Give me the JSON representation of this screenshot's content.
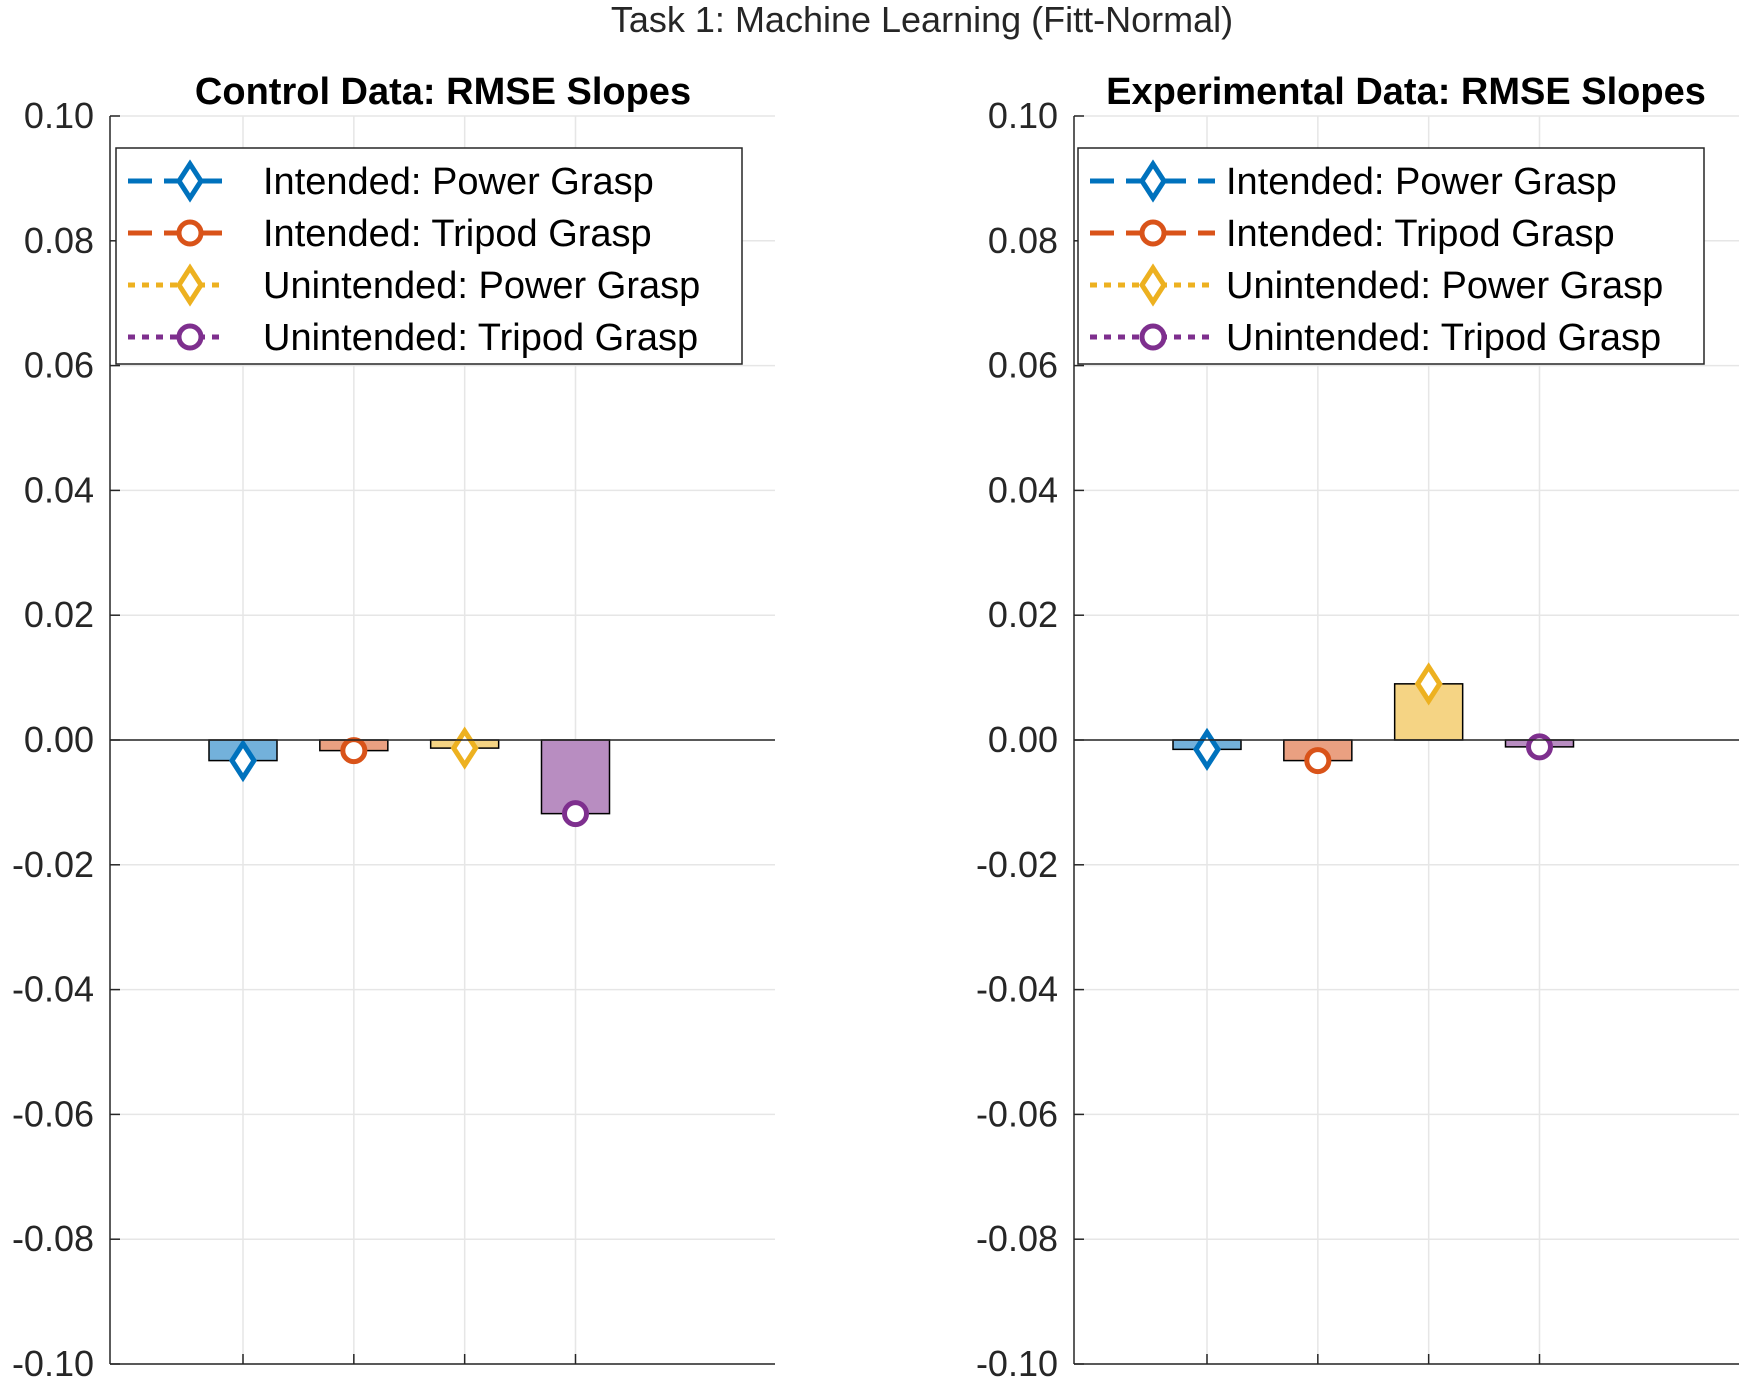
{
  "figure": {
    "suptitle": "Task 1: Machine Learning (Fitt-Normal)"
  },
  "chart_data": [
    {
      "type": "bar",
      "title": "Control Data: RMSE Slopes",
      "xlabel": "",
      "ylabel": "",
      "ylim": [
        -0.1,
        0.1
      ],
      "yticks": [
        0.1,
        0.08,
        0.06,
        0.04,
        0.02,
        0.0,
        -0.02,
        -0.04,
        -0.06,
        -0.08,
        -0.1
      ],
      "ytick_labels": [
        "0.10",
        "0.08",
        "0.06",
        "0.04",
        "0.02",
        "0.00",
        "-0.02",
        "-0.04",
        "-0.06",
        "-0.08",
        "-0.10"
      ],
      "grid": true,
      "legend_position": "top-left",
      "series": [
        {
          "name": "Intended: Power Grasp",
          "values": [
            -0.0033
          ],
          "color": "#0072BD",
          "marker": "diamond",
          "line": "dashed"
        },
        {
          "name": "Intended: Tripod Grasp",
          "values": [
            -0.0017
          ],
          "color": "#D95319",
          "marker": "circle",
          "line": "dashed"
        },
        {
          "name": "Unintended: Power Grasp",
          "values": [
            -0.0013
          ],
          "color": "#EDB120",
          "marker": "diamond",
          "line": "dotted"
        },
        {
          "name": "Unintended: Tripod Grasp",
          "values": [
            -0.0118
          ],
          "color": "#7E2F8E",
          "marker": "circle",
          "line": "dotted"
        }
      ]
    },
    {
      "type": "bar",
      "title": "Experimental Data: RMSE Slopes",
      "xlabel": "",
      "ylabel": "",
      "ylim": [
        -0.1,
        0.1
      ],
      "yticks": [
        0.1,
        0.08,
        0.06,
        0.04,
        0.02,
        0.0,
        -0.02,
        -0.04,
        -0.06,
        -0.08,
        -0.1
      ],
      "ytick_labels": [
        "0.10",
        "0.08",
        "0.06",
        "0.04",
        "0.02",
        "0.00",
        "-0.02",
        "-0.04",
        "-0.06",
        "-0.08",
        "-0.10"
      ],
      "grid": true,
      "legend_position": "top-left",
      "series": [
        {
          "name": "Intended: Power Grasp",
          "values": [
            -0.0015
          ],
          "color": "#0072BD",
          "marker": "diamond",
          "line": "dashed"
        },
        {
          "name": "Intended: Tripod Grasp",
          "values": [
            -0.0033
          ],
          "color": "#D95319",
          "marker": "circle",
          "line": "dashed"
        },
        {
          "name": "Unintended: Power Grasp",
          "values": [
            0.009
          ],
          "color": "#EDB120",
          "marker": "diamond",
          "line": "dotted"
        },
        {
          "name": "Unintended: Tripod Grasp",
          "values": [
            -0.0011
          ],
          "color": "#7E2F8E",
          "marker": "circle",
          "line": "dotted"
        }
      ]
    }
  ]
}
